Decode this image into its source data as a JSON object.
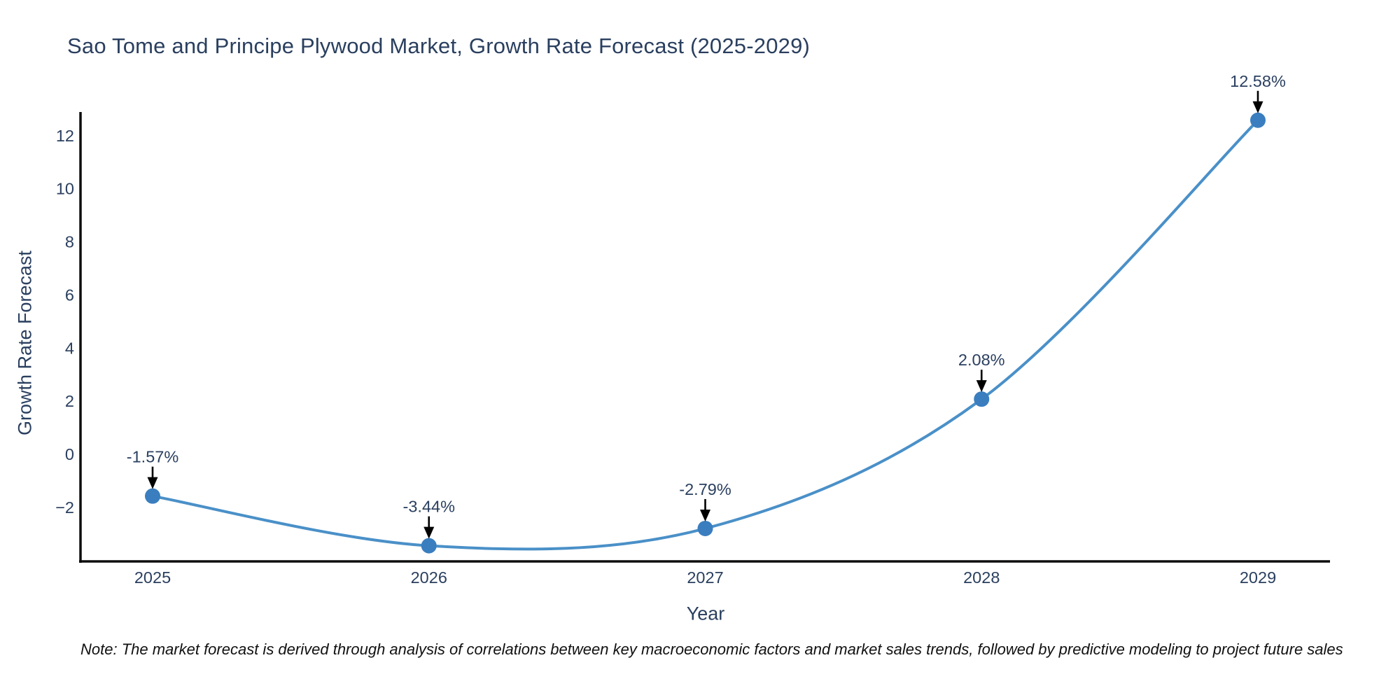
{
  "title": "Sao Tome and Principe Plywood Market, Growth Rate Forecast (2025-2029)",
  "note": "Note: The market forecast is derived through analysis of correlations between key macroeconomic factors and market sales trends, followed by predictive modeling to project future sales",
  "colors": {
    "line": "#4a90c8",
    "marker": "#3a7ebf",
    "axis_line": "#0d0d0d",
    "arrow": "#000000",
    "text": "#2a3f5f",
    "background": "#ffffff"
  },
  "chart_data": {
    "type": "line",
    "title": "Sao Tome and Principe Plywood Market, Growth Rate Forecast (2025-2029)",
    "x": [
      "2025",
      "2026",
      "2027",
      "2028",
      "2029"
    ],
    "y": [
      -1.57,
      -3.44,
      -2.79,
      2.08,
      12.58
    ],
    "point_labels": [
      "-1.57%",
      "-3.44%",
      "-2.79%",
      "2.08%",
      "12.58%"
    ],
    "xlabel": "Year",
    "ylabel": "Growth Rate Forecast",
    "yticks": [
      -2,
      0,
      2,
      4,
      6,
      8,
      10,
      12
    ],
    "ylim": [
      -4.03,
      12.89
    ],
    "line_shape": "spline",
    "grid": false,
    "legend_position": "none",
    "markers": true,
    "annotation_style": "value labels with black down-arrows above each data point"
  }
}
